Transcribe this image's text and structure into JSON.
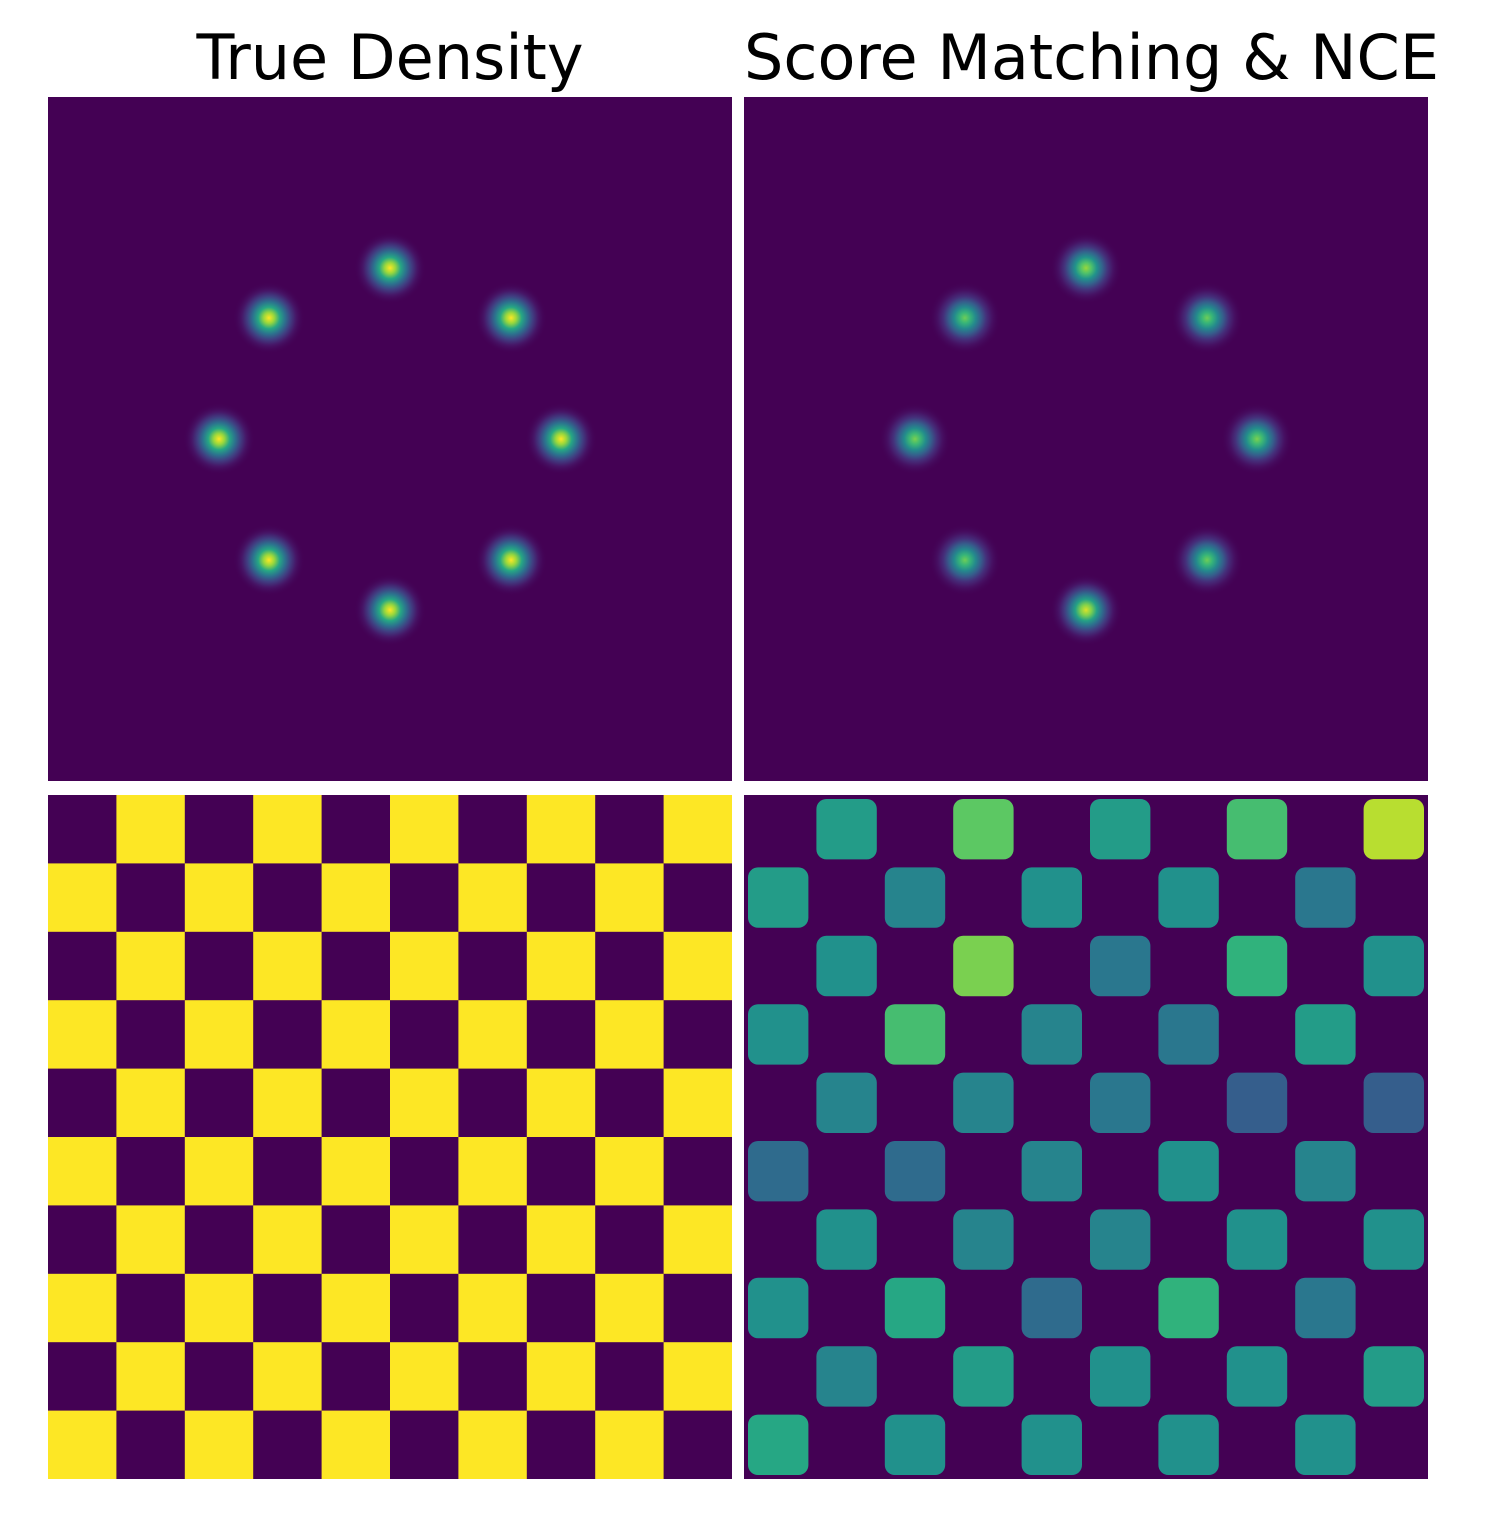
{
  "colors": {
    "low": "#440154",
    "high": "#fde725",
    "colormap": "viridis"
  },
  "columns": [
    {
      "title": "True Density"
    },
    {
      "title": "Score Matching & NCE"
    }
  ],
  "chart_data": [
    {
      "type": "heatmap",
      "panel": "top-left",
      "title": "True Density",
      "distribution": "mixture of 8 gaussians on a ring",
      "centers": [
        [
          0,
          2.5
        ],
        [
          1.77,
          1.77
        ],
        [
          2.5,
          0
        ],
        [
          1.77,
          -1.77
        ],
        [
          0,
          -2.5
        ],
        [
          -1.77,
          -1.77
        ],
        [
          -2.5,
          0
        ],
        [
          -1.77,
          1.77
        ]
      ],
      "peak_intensity": [
        1,
        1,
        1,
        1,
        1,
        1,
        1,
        1
      ],
      "xlim": [
        -5,
        5
      ],
      "ylim": [
        -5,
        5
      ]
    },
    {
      "type": "heatmap",
      "panel": "top-right",
      "title": "Score Matching & NCE",
      "distribution": "learned mixture of 8 gaussians on a ring",
      "centers": [
        [
          0,
          2.5
        ],
        [
          1.77,
          1.77
        ],
        [
          2.5,
          0
        ],
        [
          1.77,
          -1.77
        ],
        [
          0,
          -2.5
        ],
        [
          -1.77,
          -1.77
        ],
        [
          -2.5,
          0
        ],
        [
          -1.77,
          1.77
        ]
      ],
      "peak_intensity": [
        0.85,
        0.78,
        0.8,
        0.78,
        0.95,
        0.78,
        0.8,
        0.78
      ],
      "xlim": [
        -5,
        5
      ],
      "ylim": [
        -5,
        5
      ]
    },
    {
      "type": "heatmap",
      "panel": "bottom-left",
      "distribution": "checkerboard",
      "grid": [
        10,
        10
      ],
      "values": [
        [
          0,
          1,
          0,
          1,
          0,
          1,
          0,
          1,
          0,
          1
        ],
        [
          1,
          0,
          1,
          0,
          1,
          0,
          1,
          0,
          1,
          0
        ],
        [
          0,
          1,
          0,
          1,
          0,
          1,
          0,
          1,
          0,
          1
        ],
        [
          1,
          0,
          1,
          0,
          1,
          0,
          1,
          0,
          1,
          0
        ],
        [
          0,
          1,
          0,
          1,
          0,
          1,
          0,
          1,
          0,
          1
        ],
        [
          1,
          0,
          1,
          0,
          1,
          0,
          1,
          0,
          1,
          0
        ],
        [
          0,
          1,
          0,
          1,
          0,
          1,
          0,
          1,
          0,
          1
        ],
        [
          1,
          0,
          1,
          0,
          1,
          0,
          1,
          0,
          1,
          0
        ],
        [
          0,
          1,
          0,
          1,
          0,
          1,
          0,
          1,
          0,
          1
        ],
        [
          1,
          0,
          1,
          0,
          1,
          0,
          1,
          0,
          1,
          0
        ]
      ]
    },
    {
      "type": "heatmap",
      "panel": "bottom-right",
      "distribution": "learned checkerboard",
      "grid": [
        10,
        10
      ],
      "values": [
        [
          0,
          0.55,
          0,
          0.75,
          0,
          0.55,
          0,
          0.7,
          0,
          0.9
        ],
        [
          0.55,
          0,
          0.45,
          0,
          0.5,
          0,
          0.5,
          0,
          0.4,
          0
        ],
        [
          0,
          0.5,
          0,
          0.8,
          0,
          0.4,
          0,
          0.65,
          0,
          0.5
        ],
        [
          0.5,
          0,
          0.7,
          0,
          0.45,
          0,
          0.4,
          0,
          0.55,
          0
        ],
        [
          0,
          0.45,
          0,
          0.45,
          0,
          0.4,
          0,
          0.3,
          0,
          0.3
        ],
        [
          0.35,
          0,
          0.35,
          0,
          0.45,
          0,
          0.5,
          0,
          0.45,
          0
        ],
        [
          0,
          0.5,
          0,
          0.45,
          0,
          0.45,
          0,
          0.5,
          0,
          0.5
        ],
        [
          0.5,
          0,
          0.6,
          0,
          0.35,
          0,
          0.65,
          0,
          0.4,
          0
        ],
        [
          0,
          0.45,
          0,
          0.55,
          0,
          0.5,
          0,
          0.5,
          0,
          0.55
        ],
        [
          0.6,
          0,
          0.5,
          0,
          0.5,
          0,
          0.5,
          0,
          0.5,
          0
        ]
      ]
    }
  ]
}
